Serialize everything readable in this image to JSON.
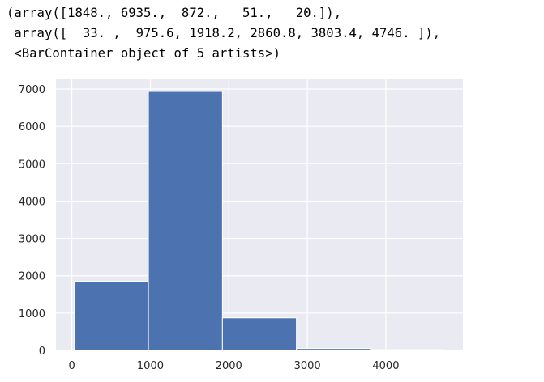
{
  "console_output": {
    "lines": [
      "(array([1848., 6935.,  872.,   51.,   20.]),",
      " array([  33. ,  975.6, 1918.2, 2860.8, 3803.4, 4746. ]),",
      " <BarContainer object of 5 artists>)"
    ]
  },
  "colors": {
    "bar": "#4c72b0",
    "plot_background": "#eaeaf2",
    "grid": "#ffffff"
  },
  "chart_data": {
    "type": "bar",
    "title": "",
    "xlabel": "",
    "ylabel": "",
    "bin_edges": [
      33.0,
      975.6,
      1918.2,
      2860.8,
      3803.4,
      4746.0
    ],
    "values": [
      1848,
      6935,
      872,
      51,
      20
    ],
    "xlim": [
      -202.65,
      4981.65
    ],
    "ylim": [
      0,
      7281.75
    ],
    "xticks": [
      0,
      1000,
      2000,
      3000,
      4000
    ],
    "xtick_labels": [
      "0",
      "1000",
      "2000",
      "3000",
      "4000"
    ],
    "yticks": [
      0,
      1000,
      2000,
      3000,
      4000,
      5000,
      6000,
      7000
    ],
    "ytick_labels": [
      "0",
      "1000",
      "2000",
      "3000",
      "4000",
      "5000",
      "6000",
      "7000"
    ],
    "grid": true,
    "legend": "none"
  }
}
